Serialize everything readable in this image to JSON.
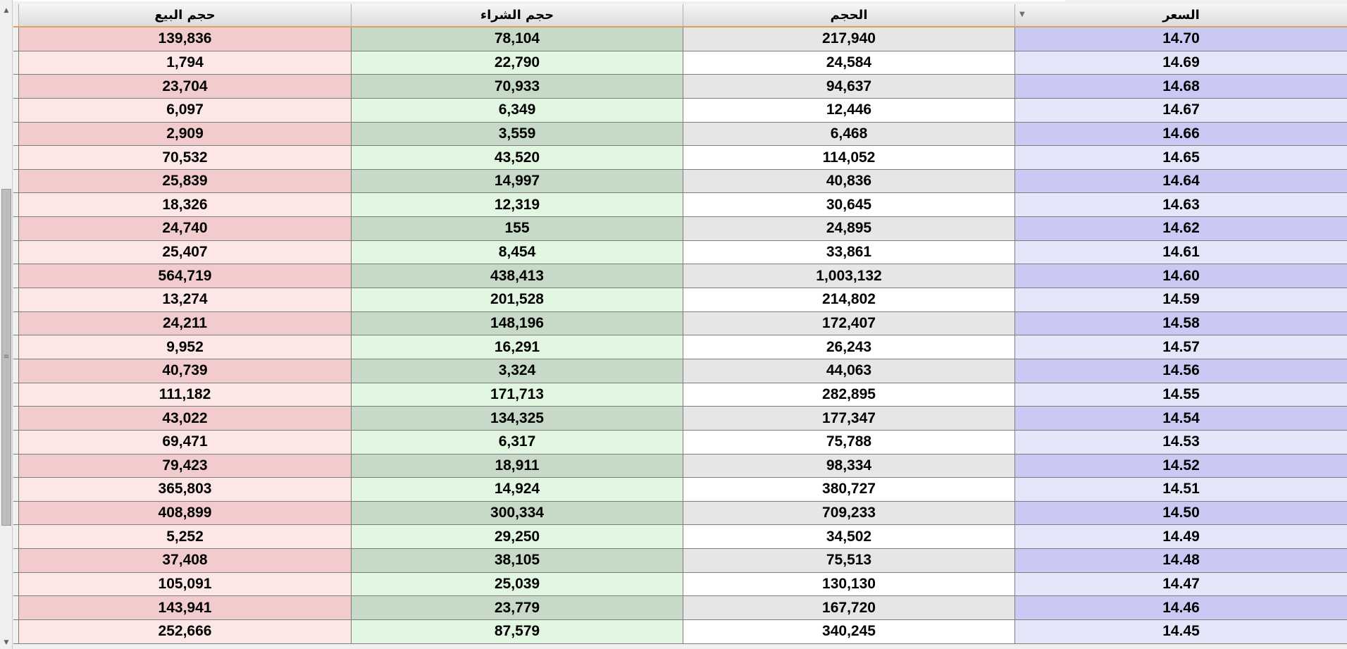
{
  "columns": {
    "price": "السعر",
    "volume": "الحجم",
    "buy_volume": "حجم الشراء",
    "sell_volume": "حجم البيع"
  },
  "icons": {
    "sort": "sort-descending-icon",
    "scroll_up": "scroll-up-arrow-icon",
    "scroll_down": "scroll-down-arrow-icon"
  },
  "glyphs": {
    "sort": "▼",
    "scroll_up": "▲",
    "scroll_down": "▼",
    "grip": "≡"
  },
  "colors": {
    "price_dark": "#c9c9f3",
    "price_light": "#e6e6fb",
    "buy_dark": "#c7d9c7",
    "buy_light": "#e2f7e2",
    "sell_dark": "#f2cccc",
    "sell_light": "#fde6e6",
    "header_accent": "#e0a060"
  },
  "rows": [
    {
      "price": "14.70",
      "volume": "217,940",
      "buy_volume": "78,104",
      "sell_volume": "139,836"
    },
    {
      "price": "14.69",
      "volume": "24,584",
      "buy_volume": "22,790",
      "sell_volume": "1,794"
    },
    {
      "price": "14.68",
      "volume": "94,637",
      "buy_volume": "70,933",
      "sell_volume": "23,704"
    },
    {
      "price": "14.67",
      "volume": "12,446",
      "buy_volume": "6,349",
      "sell_volume": "6,097"
    },
    {
      "price": "14.66",
      "volume": "6,468",
      "buy_volume": "3,559",
      "sell_volume": "2,909"
    },
    {
      "price": "14.65",
      "volume": "114,052",
      "buy_volume": "43,520",
      "sell_volume": "70,532"
    },
    {
      "price": "14.64",
      "volume": "40,836",
      "buy_volume": "14,997",
      "sell_volume": "25,839"
    },
    {
      "price": "14.63",
      "volume": "30,645",
      "buy_volume": "12,319",
      "sell_volume": "18,326"
    },
    {
      "price": "14.62",
      "volume": "24,895",
      "buy_volume": "155",
      "sell_volume": "24,740"
    },
    {
      "price": "14.61",
      "volume": "33,861",
      "buy_volume": "8,454",
      "sell_volume": "25,407"
    },
    {
      "price": "14.60",
      "volume": "1,003,132",
      "buy_volume": "438,413",
      "sell_volume": "564,719"
    },
    {
      "price": "14.59",
      "volume": "214,802",
      "buy_volume": "201,528",
      "sell_volume": "13,274"
    },
    {
      "price": "14.58",
      "volume": "172,407",
      "buy_volume": "148,196",
      "sell_volume": "24,211"
    },
    {
      "price": "14.57",
      "volume": "26,243",
      "buy_volume": "16,291",
      "sell_volume": "9,952"
    },
    {
      "price": "14.56",
      "volume": "44,063",
      "buy_volume": "3,324",
      "sell_volume": "40,739"
    },
    {
      "price": "14.55",
      "volume": "282,895",
      "buy_volume": "171,713",
      "sell_volume": "111,182"
    },
    {
      "price": "14.54",
      "volume": "177,347",
      "buy_volume": "134,325",
      "sell_volume": "43,022"
    },
    {
      "price": "14.53",
      "volume": "75,788",
      "buy_volume": "6,317",
      "sell_volume": "69,471"
    },
    {
      "price": "14.52",
      "volume": "98,334",
      "buy_volume": "18,911",
      "sell_volume": "79,423"
    },
    {
      "price": "14.51",
      "volume": "380,727",
      "buy_volume": "14,924",
      "sell_volume": "365,803"
    },
    {
      "price": "14.50",
      "volume": "709,233",
      "buy_volume": "300,334",
      "sell_volume": "408,899"
    },
    {
      "price": "14.49",
      "volume": "34,502",
      "buy_volume": "29,250",
      "sell_volume": "5,252"
    },
    {
      "price": "14.48",
      "volume": "75,513",
      "buy_volume": "38,105",
      "sell_volume": "37,408"
    },
    {
      "price": "14.47",
      "volume": "130,130",
      "buy_volume": "25,039",
      "sell_volume": "105,091"
    },
    {
      "price": "14.46",
      "volume": "167,720",
      "buy_volume": "23,779",
      "sell_volume": "143,941"
    },
    {
      "price": "14.45",
      "volume": "340,245",
      "buy_volume": "87,579",
      "sell_volume": "252,666"
    }
  ]
}
